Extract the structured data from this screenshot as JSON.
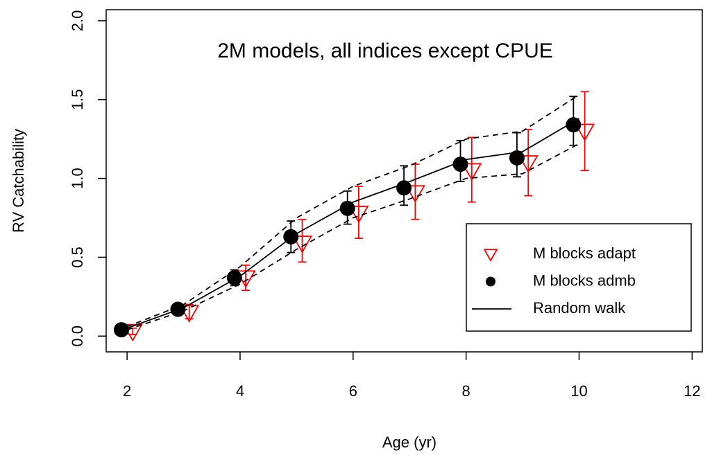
{
  "chart_data": {
    "type": "line",
    "title": "2M models, all indices except CPUE",
    "x_label": "Age (yr)",
    "y_label": "RV Catchability",
    "xlim": [
      1.63,
      12.18
    ],
    "ylim": [
      -0.1,
      2.07
    ],
    "xticks": [
      2,
      4,
      6,
      8,
      10,
      12
    ],
    "yticks": [
      {
        "value": 0,
        "label": "0.0"
      },
      {
        "value": 0.5,
        "label": "0.5"
      },
      {
        "value": 1,
        "label": "1.0"
      },
      {
        "value": 1.5,
        "label": "1.5"
      },
      {
        "value": 2,
        "label": "2.0"
      }
    ],
    "legend": "bottom-right",
    "series": [
      {
        "name": "M blocks adapt",
        "color": "#ff0000",
        "marker": "triangle",
        "x": [
          2.1,
          3.1,
          4.1,
          5.1,
          6.1,
          7.1,
          8.1,
          9.1,
          10.1
        ],
        "values": [
          0.03,
          0.15,
          0.37,
          0.59,
          0.78,
          0.91,
          1.05,
          1.1,
          1.3
        ],
        "lower": [
          0.01,
          0.11,
          0.29,
          0.47,
          0.62,
          0.74,
          0.85,
          0.89,
          1.05
        ],
        "upper": [
          0.05,
          0.2,
          0.45,
          0.74,
          0.95,
          1.09,
          1.26,
          1.31,
          1.55
        ]
      },
      {
        "name": "M blocks admb",
        "color": "#000000",
        "marker": "circle",
        "x": [
          1.9,
          2.9,
          3.9,
          4.9,
          5.9,
          6.9,
          7.9,
          8.9,
          9.9
        ],
        "values": [
          0.04,
          0.17,
          0.37,
          0.63,
          0.81,
          0.94,
          1.09,
          1.13,
          1.34
        ],
        "lower": [
          0.02,
          0.15,
          0.32,
          0.53,
          0.71,
          0.83,
          0.98,
          1.01,
          1.21
        ],
        "upper": [
          0.06,
          0.19,
          0.42,
          0.73,
          0.92,
          1.08,
          1.24,
          1.29,
          1.52
        ]
      },
      {
        "name": "Random walk",
        "color": "#000000",
        "marker": "line",
        "x": [
          2,
          3,
          4,
          5,
          6,
          7,
          8,
          9,
          10
        ],
        "values": [
          0.05,
          0.18,
          0.38,
          0.65,
          0.85,
          0.98,
          1.12,
          1.17,
          1.38
        ],
        "lower": [
          0.04,
          0.16,
          0.33,
          0.55,
          0.75,
          0.87,
          1.0,
          1.03,
          1.22
        ],
        "upper": [
          0.06,
          0.2,
          0.44,
          0.75,
          0.95,
          1.08,
          1.25,
          1.3,
          1.53
        ]
      }
    ]
  }
}
